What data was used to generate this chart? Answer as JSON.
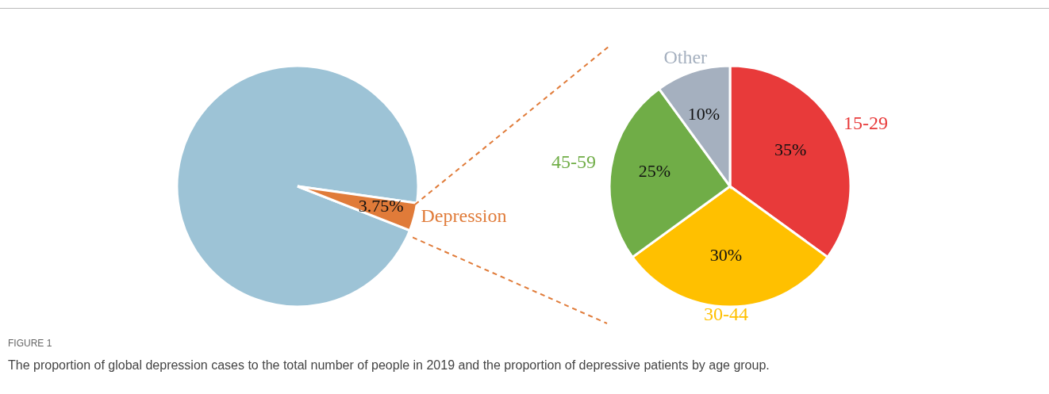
{
  "chart_data": [
    {
      "type": "pie",
      "categories": [
        null,
        "Depression"
      ],
      "values": [
        96.25,
        3.75
      ],
      "colors": [
        "#9dc3d6",
        "#e07b39"
      ],
      "value_labels": [
        null,
        "3.75%"
      ],
      "annotations": [
        "FIGURE 1",
        "The proportion of global depression cases to the total number of people in 2019 and the proportion of depressive patients by age group."
      ]
    },
    {
      "type": "pie",
      "categories": [
        "15-29",
        "30-44",
        "45-59",
        "Other"
      ],
      "values": [
        35,
        30,
        25,
        10
      ],
      "colors": [
        "#e83a3a",
        "#ffc000",
        "#70ad47",
        "#a5b0bf"
      ],
      "value_labels": [
        "35%",
        "30%",
        "25%",
        "10%"
      ]
    }
  ]
}
